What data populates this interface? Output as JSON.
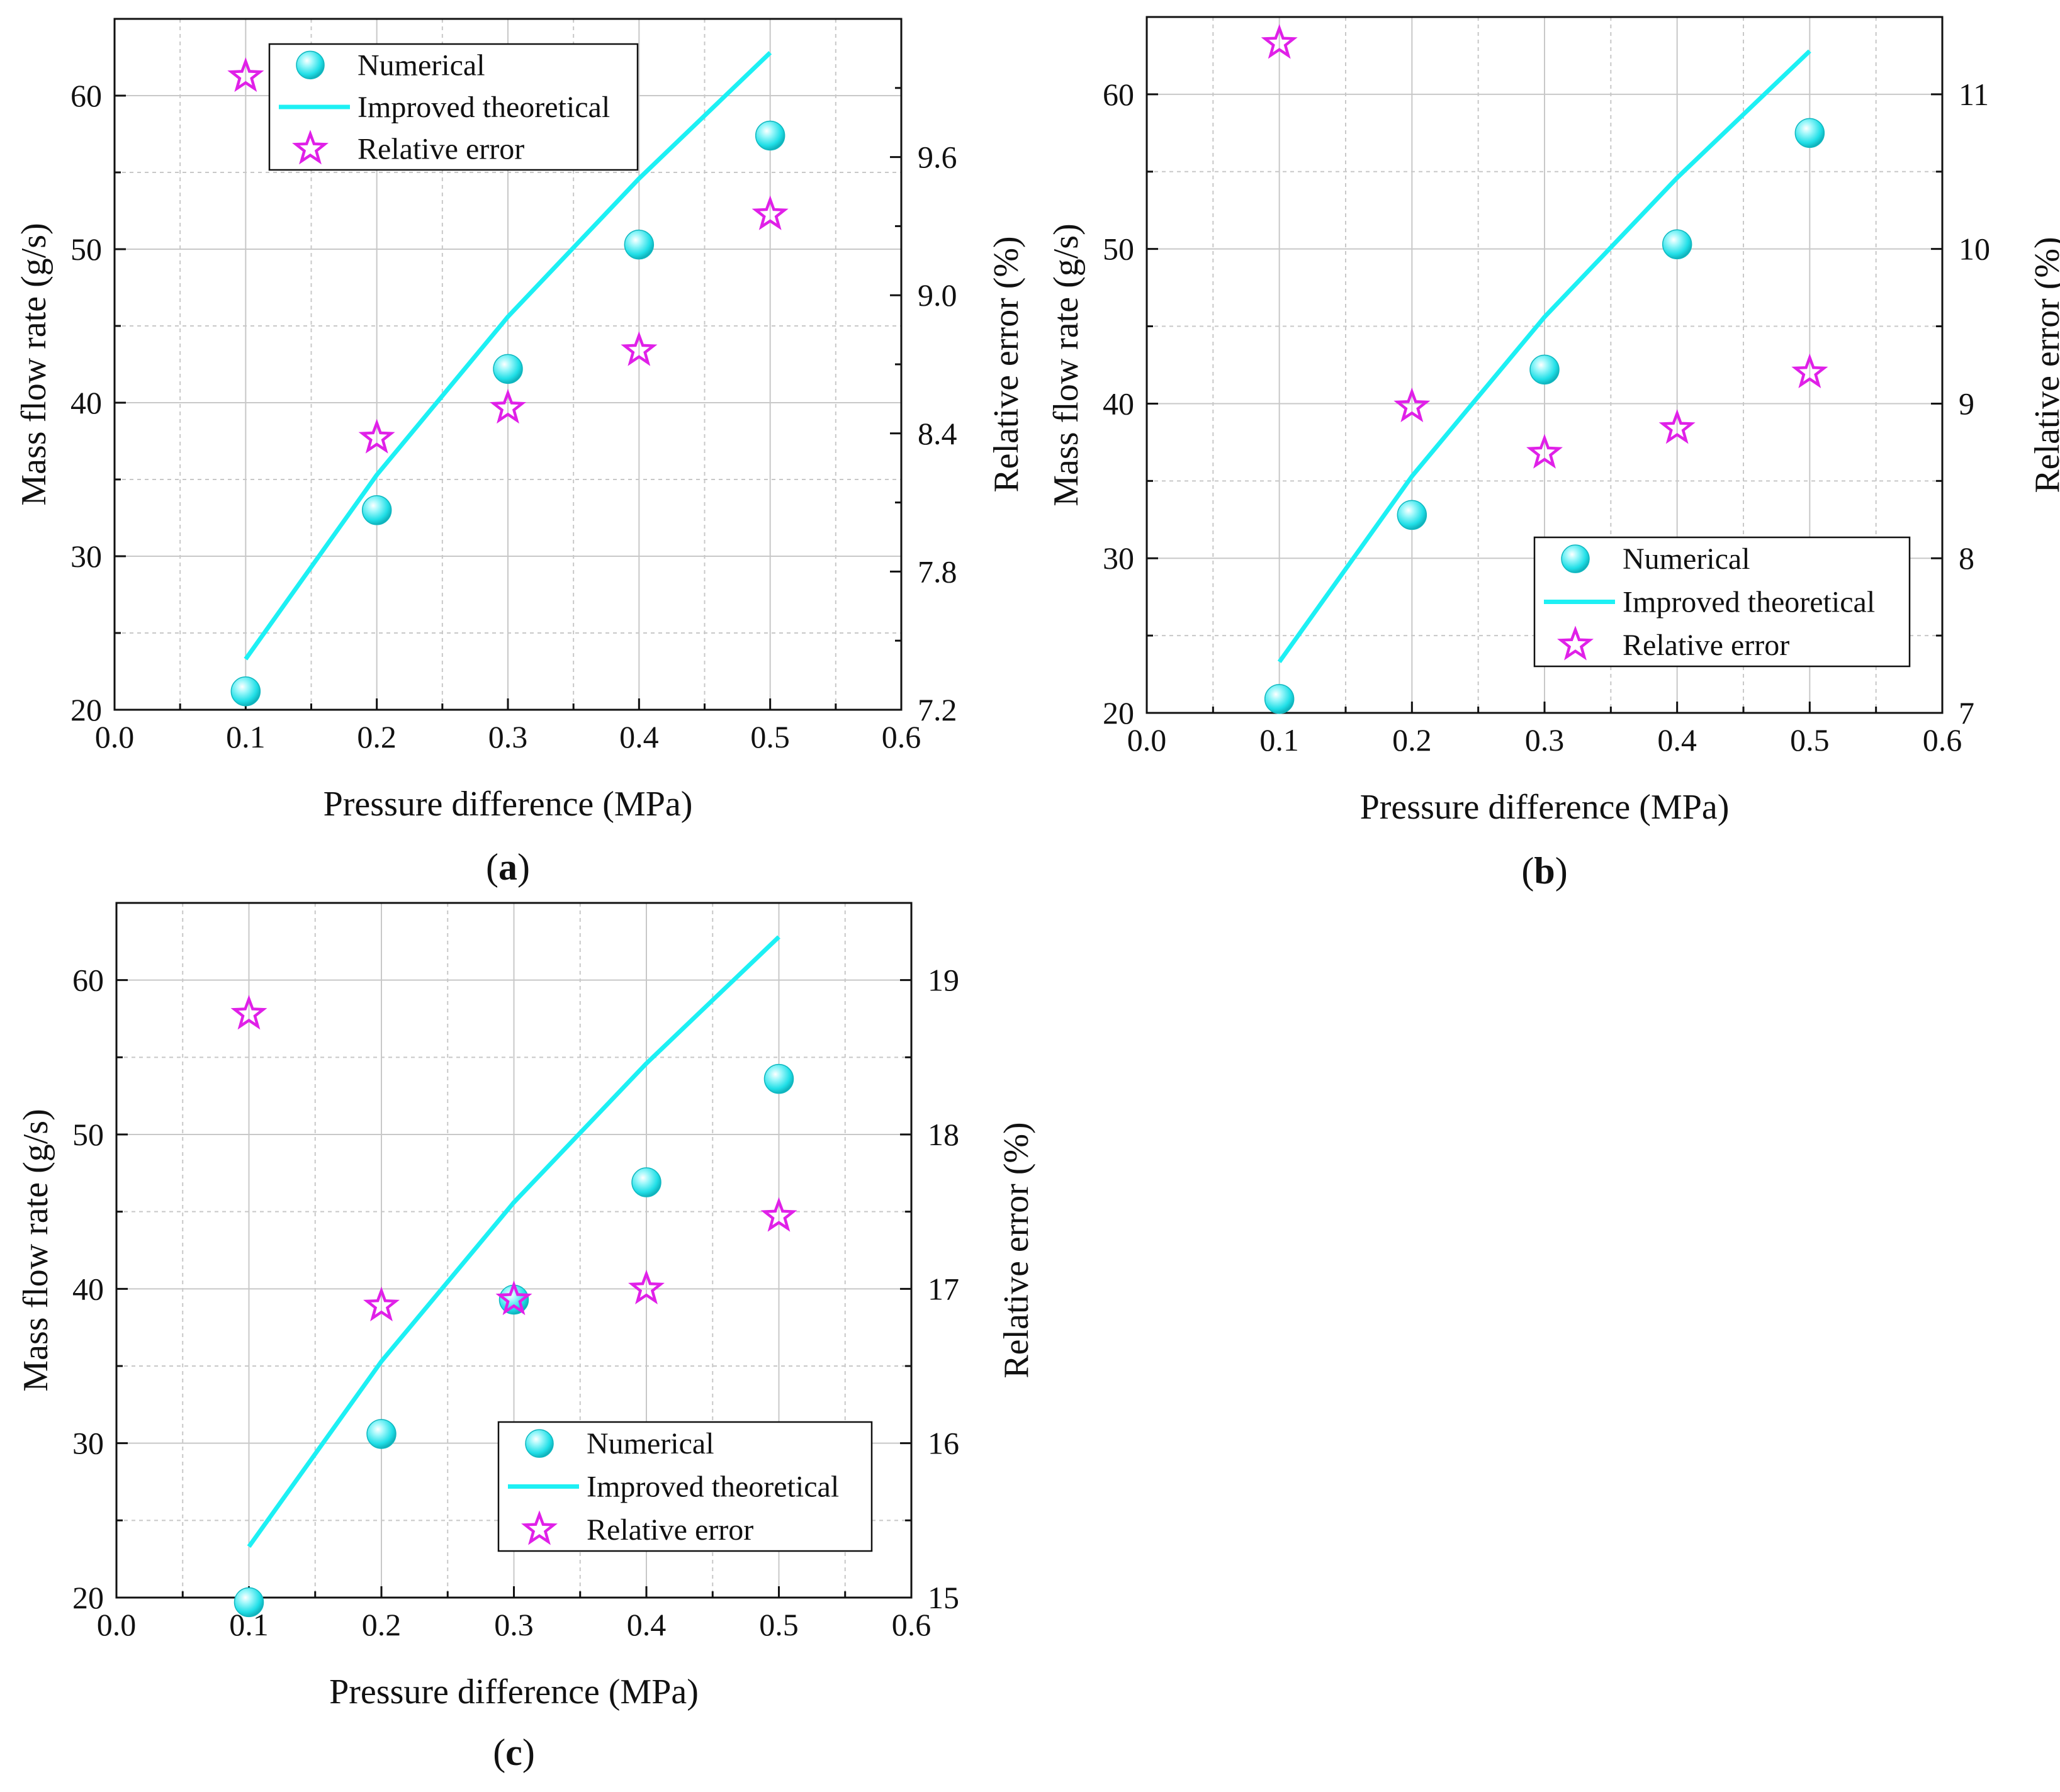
{
  "colors": {
    "numerical": "#2ce8ee",
    "theoretical": "#1df0f4",
    "relative_error": "#e020e8",
    "grid": "#c8c8c8",
    "axis": "#111111"
  },
  "chart_data": [
    {
      "type": "scatter",
      "panel_label": "(a)",
      "panel_letter": "a",
      "xlabel": "Pressure difference (MPa)",
      "ylabel": "Mass flow rate (g/s)",
      "y2label": "Relative error (%)",
      "xlim": [
        0.0,
        0.6
      ],
      "ylim": [
        20,
        65
      ],
      "y2lim": [
        7.2,
        10.2
      ],
      "xticks": [
        "0.0",
        "0.1",
        "0.2",
        "0.3",
        "0.4",
        "0.5",
        "0.6"
      ],
      "yticks": [
        "20",
        "30",
        "40",
        "50",
        "60"
      ],
      "y2ticks": [
        "7.2",
        "7.8",
        "8.4",
        "9.0",
        "9.6"
      ],
      "legend_position": "top-left",
      "grid": true,
      "series": [
        {
          "name": "Numerical",
          "kind": "sphere",
          "axis": "left",
          "x": [
            0.1,
            0.2,
            0.3,
            0.4,
            0.5
          ],
          "values": [
            21.2,
            33.0,
            42.2,
            50.3,
            57.4
          ]
        },
        {
          "name": "Improved theoretical",
          "kind": "line",
          "axis": "left",
          "x": [
            0.1,
            0.2,
            0.3,
            0.4,
            0.5
          ],
          "values": [
            23.3,
            35.3,
            45.6,
            54.6,
            62.8
          ]
        },
        {
          "name": "Relative error",
          "kind": "star",
          "axis": "right",
          "x": [
            0.1,
            0.2,
            0.3,
            0.4,
            0.5
          ],
          "values": [
            9.95,
            8.38,
            8.51,
            8.76,
            9.35
          ]
        }
      ]
    },
    {
      "type": "scatter",
      "panel_label": "(b)",
      "panel_letter": "b",
      "xlabel": "Pressure difference (MPa)",
      "ylabel": "Mass flow rate (g/s)",
      "y2label": "Relative error (%)",
      "xlim": [
        0.0,
        0.6
      ],
      "ylim": [
        20,
        65
      ],
      "y2lim": [
        7,
        11.5
      ],
      "xticks": [
        "0.0",
        "0.1",
        "0.2",
        "0.3",
        "0.4",
        "0.5",
        "0.6"
      ],
      "yticks": [
        "20",
        "30",
        "40",
        "50",
        "60"
      ],
      "y2ticks": [
        "7",
        "8",
        "9",
        "10",
        "11"
      ],
      "legend_position": "bottom-right",
      "grid": true,
      "series": [
        {
          "name": "Numerical",
          "kind": "sphere",
          "axis": "left",
          "x": [
            0.1,
            0.2,
            0.3,
            0.4,
            0.5
          ],
          "values": [
            20.9,
            32.8,
            42.2,
            50.3,
            57.5
          ]
        },
        {
          "name": "Improved theoretical",
          "kind": "line",
          "axis": "left",
          "x": [
            0.1,
            0.2,
            0.3,
            0.4,
            0.5
          ],
          "values": [
            23.3,
            35.3,
            45.6,
            54.6,
            62.8
          ]
        },
        {
          "name": "Relative error",
          "kind": "star",
          "axis": "right",
          "x": [
            0.1,
            0.2,
            0.3,
            0.4,
            0.5
          ],
          "values": [
            11.33,
            8.98,
            8.68,
            8.84,
            9.2
          ]
        }
      ]
    },
    {
      "type": "scatter",
      "panel_label": "(c)",
      "panel_letter": "c",
      "xlabel": "Pressure difference (MPa)",
      "ylabel": "Mass flow rate (g/s)",
      "y2label": "Relative error (%)",
      "xlim": [
        0.0,
        0.6
      ],
      "ylim": [
        20,
        65
      ],
      "y2lim": [
        15,
        19.5
      ],
      "xticks": [
        "0.0",
        "0.1",
        "0.2",
        "0.3",
        "0.4",
        "0.5",
        "0.6"
      ],
      "yticks": [
        "20",
        "30",
        "40",
        "50",
        "60"
      ],
      "y2ticks": [
        "15",
        "16",
        "17",
        "18",
        "19"
      ],
      "legend_position": "bottom-right",
      "grid": true,
      "series": [
        {
          "name": "Numerical",
          "kind": "sphere",
          "axis": "left",
          "x": [
            0.1,
            0.2,
            0.3,
            0.4,
            0.5
          ],
          "values": [
            19.7,
            30.6,
            39.3,
            46.9,
            53.6
          ]
        },
        {
          "name": "Improved theoretical",
          "kind": "line",
          "axis": "left",
          "x": [
            0.1,
            0.2,
            0.3,
            0.4,
            0.5
          ],
          "values": [
            23.3,
            35.3,
            45.6,
            54.6,
            62.8
          ]
        },
        {
          "name": "Relative error",
          "kind": "star",
          "axis": "right",
          "x": [
            0.1,
            0.2,
            0.3,
            0.4,
            0.5
          ],
          "values": [
            18.78,
            16.89,
            16.93,
            17.0,
            17.47
          ]
        }
      ]
    }
  ]
}
